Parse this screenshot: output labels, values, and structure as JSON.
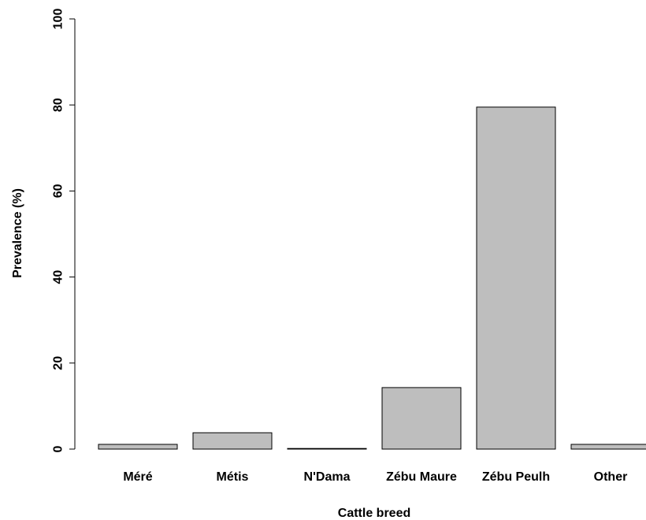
{
  "chart_data": {
    "type": "bar",
    "categories": [
      "Méré",
      "Métis",
      "N'Dama",
      "Zébu Maure",
      "Zébu Peulh",
      "Other"
    ],
    "values": [
      1.1,
      3.8,
      0.1,
      14.3,
      79.5,
      1.1
    ],
    "xlabel": "Cattle breed",
    "ylabel": "Prevalence (%)",
    "ylim": [
      0,
      100
    ],
    "yticks": [
      0,
      20,
      40,
      60,
      80,
      100
    ],
    "grid": false,
    "legend": "none",
    "colors": {
      "bar_fill": "#bebebe",
      "bar_stroke": "#000000",
      "axis": "#000000"
    }
  }
}
